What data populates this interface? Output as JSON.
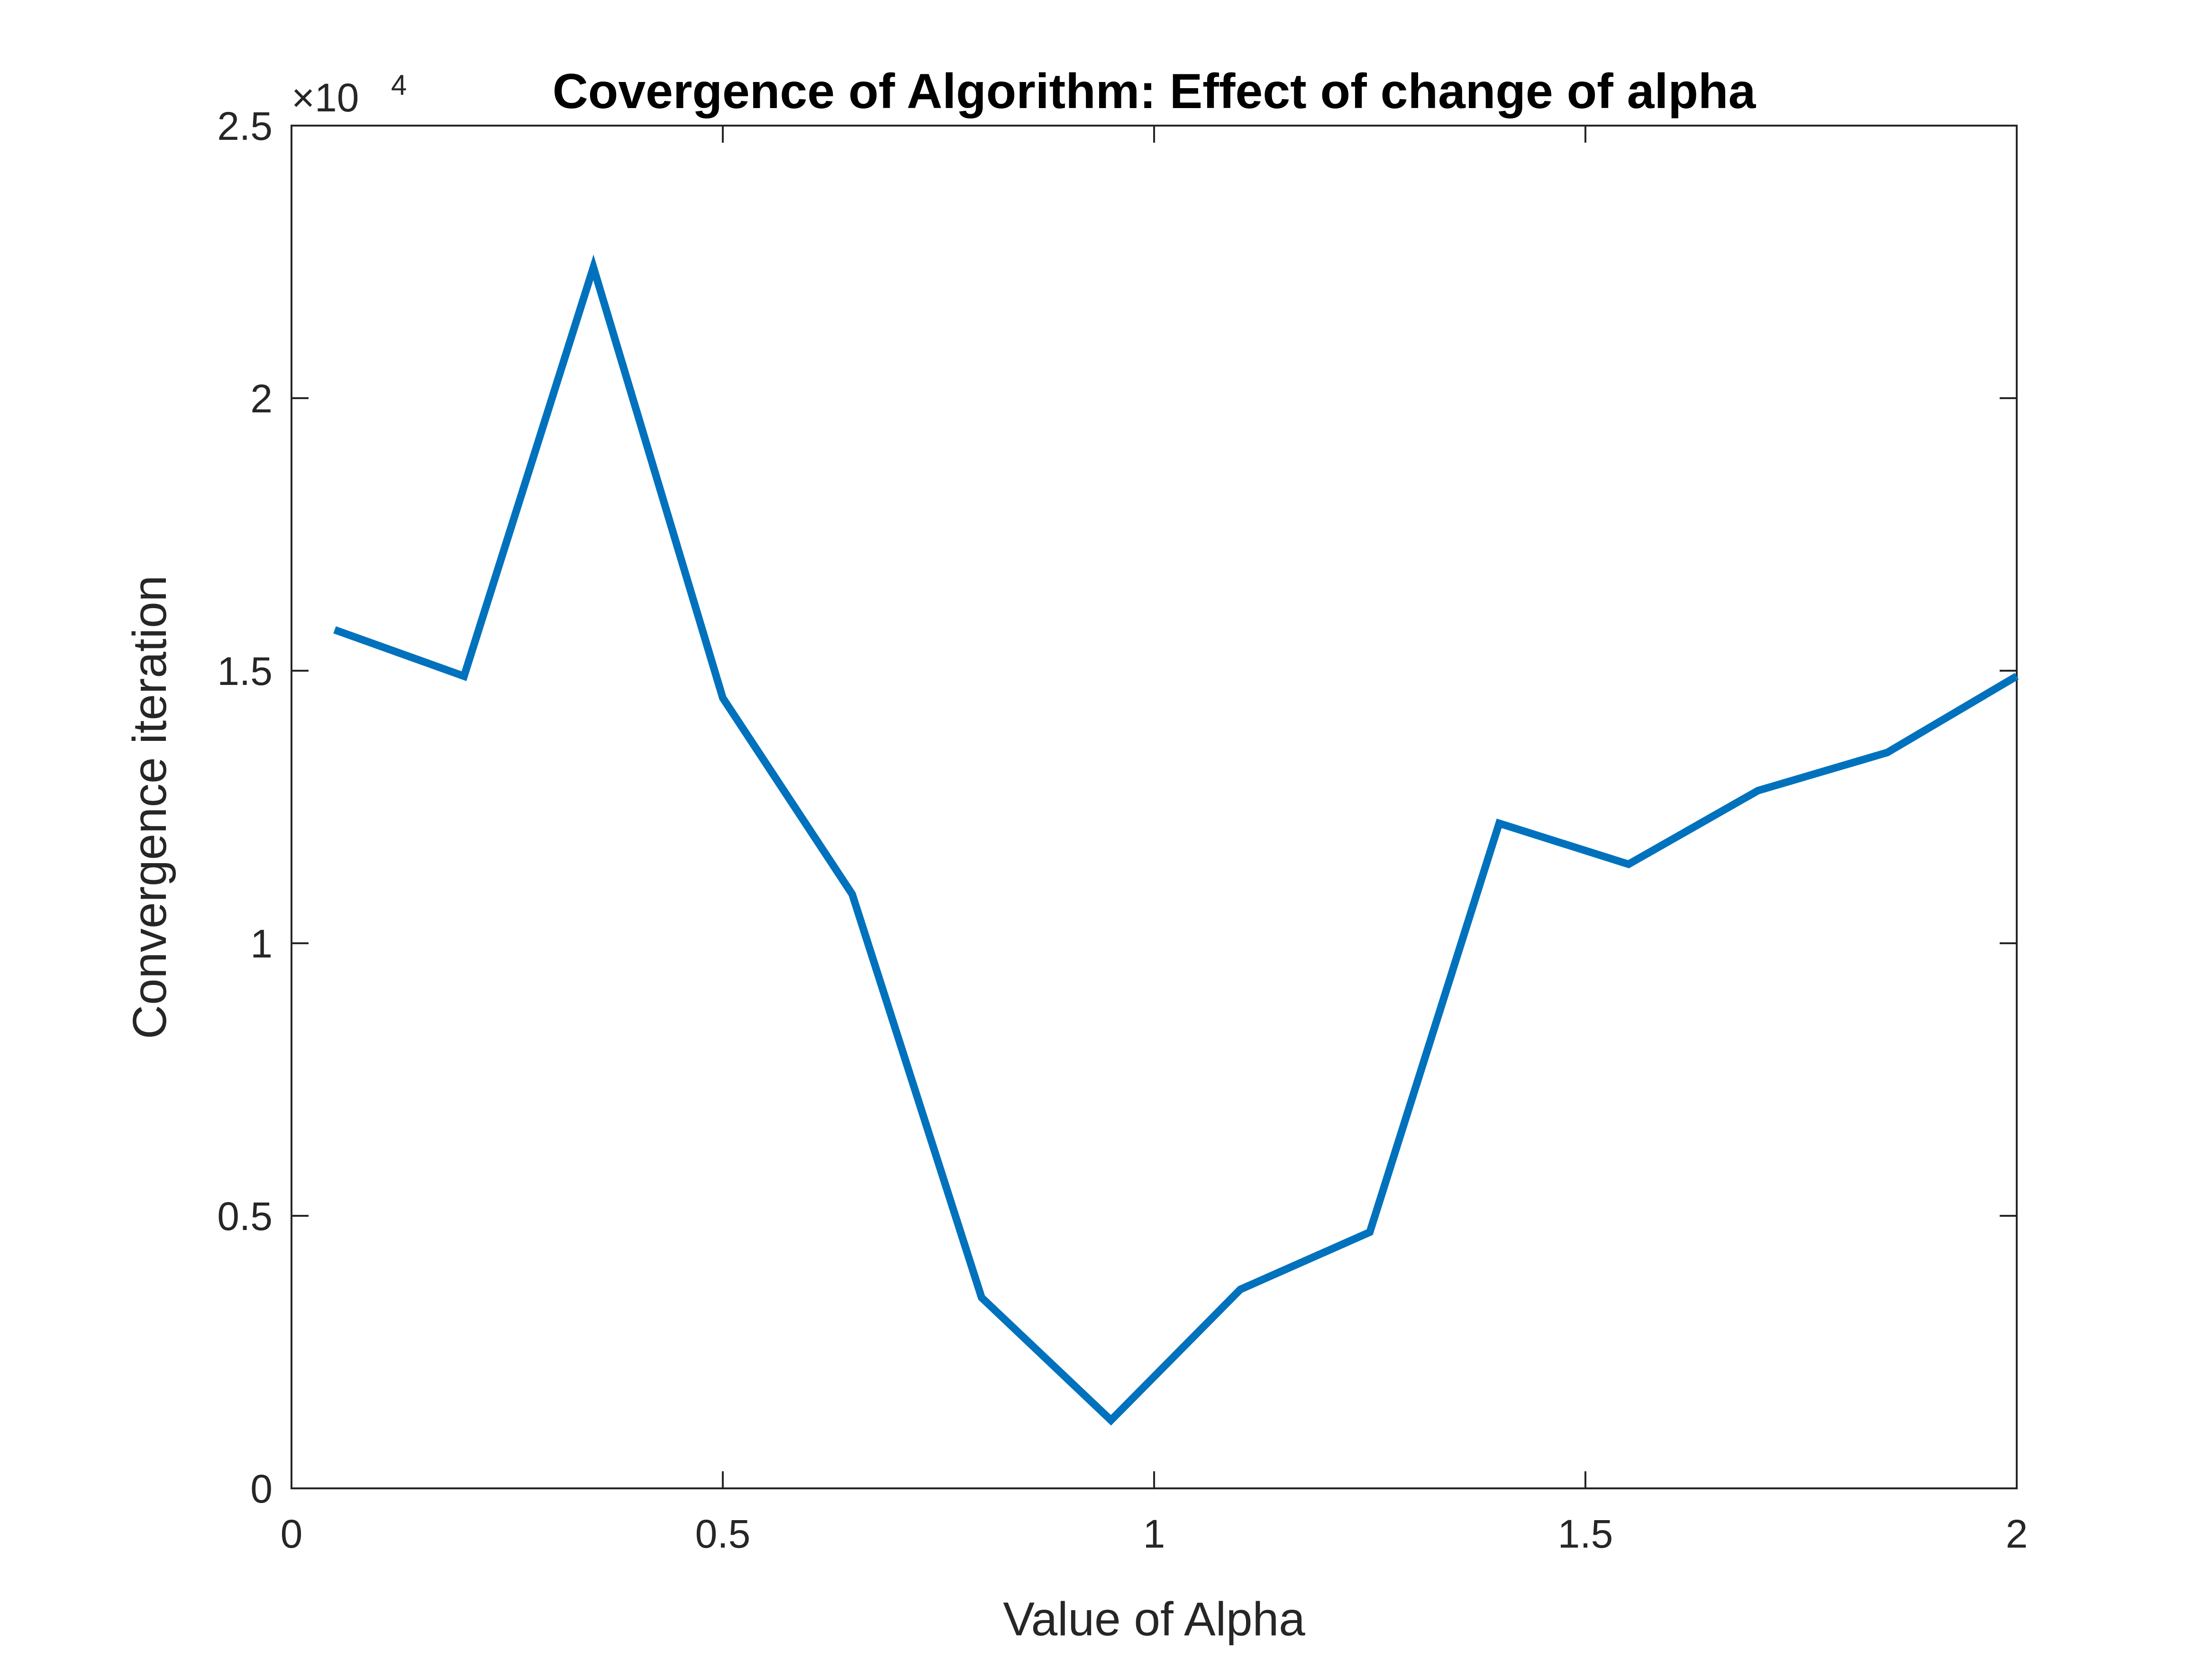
{
  "chart_data": {
    "type": "line",
    "title": "Covergence of Algorithm: Effect of change of alpha",
    "xlabel": "Value of Alpha",
    "ylabel": "Convergence iteration",
    "y_multiplier": {
      "times": "×10",
      "power": "4"
    },
    "xlim": [
      0,
      2
    ],
    "ylim": [
      0,
      25000
    ],
    "x_ticks": [
      0,
      0.5,
      1,
      1.5,
      2
    ],
    "x_tick_labels": [
      "0",
      "0.5",
      "1",
      "1.5",
      "2"
    ],
    "y_ticks": [
      0,
      5000,
      10000,
      15000,
      20000,
      25000
    ],
    "y_tick_labels": [
      "0",
      "0.5",
      "1",
      "1.5",
      "2",
      "2.5"
    ],
    "grid": false,
    "series": [
      {
        "color": "#0072BD",
        "x": [
          0.05,
          0.2,
          0.35,
          0.5,
          0.65,
          0.8,
          0.95,
          1.1,
          1.25,
          1.4,
          1.55,
          1.7,
          1.85,
          2.0
        ],
        "y": [
          15750,
          14900,
          22400,
          14500,
          10900,
          3500,
          1250,
          3650,
          4700,
          12200,
          11450,
          12800,
          13500,
          14900
        ]
      }
    ]
  }
}
